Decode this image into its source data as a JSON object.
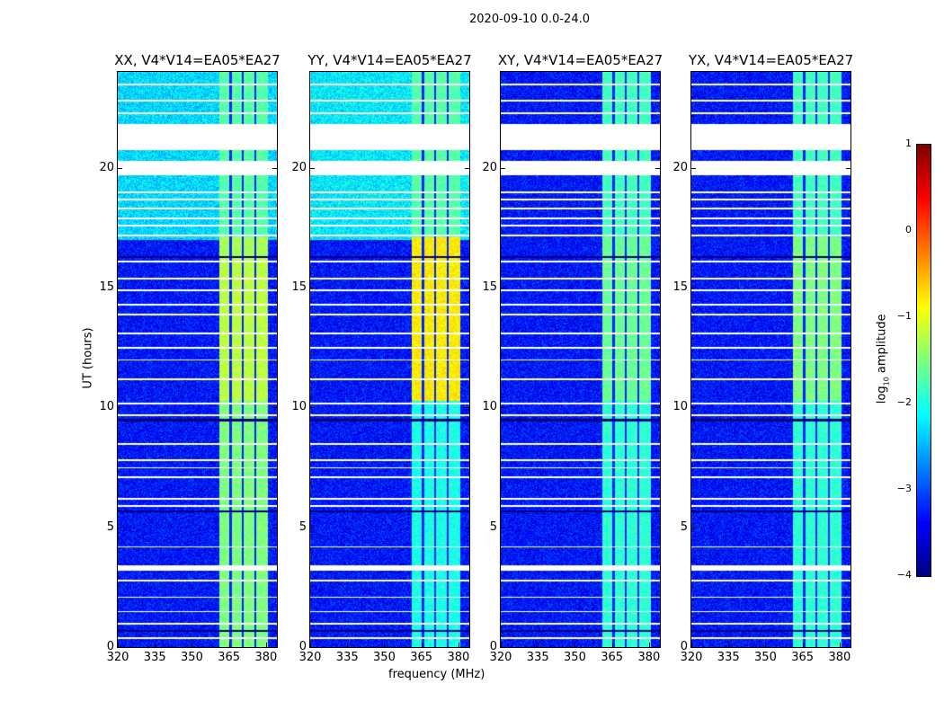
{
  "title": "2020-09-10 0.0-24.0",
  "chart_data": {
    "type": "heatmap",
    "title": "2020-09-10 0.0-24.0",
    "xlabel": "frequency (MHz)",
    "ylabel": "UT (hours)",
    "xlim": [
      320,
      384.4
    ],
    "ylim": [
      0,
      24
    ],
    "xticks": [
      "320",
      "335",
      "350",
      "365",
      "380"
    ],
    "xtick_values": [
      320,
      335,
      350,
      365,
      380
    ],
    "yticks": [
      "0",
      "5",
      "10",
      "15",
      "20"
    ],
    "ytick_values": [
      0,
      5,
      10,
      15,
      20
    ],
    "colorbar": {
      "label": "log10 amplitude",
      "label_main": "log",
      "label_sub": "10",
      "label_rest": " amplitude",
      "range": [
        -4,
        1
      ],
      "colormap": "jet",
      "ticks": [
        "1",
        "0",
        "−1",
        "−2",
        "−3",
        "−4"
      ],
      "tick_values": [
        1,
        0,
        -1,
        -2,
        -3,
        -4
      ]
    },
    "flagged_time_ranges": [
      [
        20.75,
        21.85
      ],
      [
        19.7,
        20.3
      ],
      [
        3.2,
        3.45
      ]
    ],
    "thin_flag_lines": [
      23.5,
      22.8,
      22.3,
      19.0,
      18.7,
      18.3,
      17.9,
      17.6,
      17.2,
      16.1,
      15.4,
      14.9,
      14.3,
      13.9,
      13.1,
      12.5,
      12.0,
      11.2,
      10.2,
      9.7,
      8.5,
      7.8,
      7.5,
      7.1,
      6.2,
      5.9,
      4.2,
      2.8,
      2.1,
      1.5,
      1.0,
      0.4
    ],
    "panels": [
      {
        "title": "XX, V4*V14=EA05*EA27",
        "background": [
          {
            "t": [
              17,
              24
            ],
            "level": -2.3
          },
          {
            "t": [
              0,
              17
            ],
            "level": -3.3
          }
        ],
        "band": {
          "f": [
            360.8,
            380.4
          ],
          "segments": [
            {
              "t": [
                16.3,
                17.1
              ],
              "level": -1.3
            },
            {
              "t": [
                10.3,
                16.3
              ],
              "level": -1.2
            },
            {
              "t": [
                17.1,
                24
              ],
              "level": -1.7
            },
            {
              "t": [
                0,
                10.3
              ],
              "level": -1.5
            }
          ]
        }
      },
      {
        "title": "YY, V4*V14=EA05*EA27",
        "background": [
          {
            "t": [
              17,
              24
            ],
            "level": -2.2
          },
          {
            "t": [
              0,
              17
            ],
            "level": -3.3
          }
        ],
        "band": {
          "f": [
            360.8,
            380.4
          ],
          "segments": [
            {
              "t": [
                10.3,
                17.1
              ],
              "level": -0.8
            },
            {
              "t": [
                17.1,
                24
              ],
              "level": -1.7
            },
            {
              "t": [
                0,
                10.3
              ],
              "level": -2.0
            }
          ]
        }
      },
      {
        "title": "XY, V4*V14=EA05*EA27",
        "background": [
          {
            "t": [
              0,
              24
            ],
            "level": -3.3
          }
        ],
        "band": {
          "f": [
            360.8,
            380.4
          ],
          "segments": [
            {
              "t": [
                10.3,
                17.1
              ],
              "level": -1.6
            },
            {
              "t": [
                17.1,
                24
              ],
              "level": -1.8
            },
            {
              "t": [
                0,
                10.3
              ],
              "level": -1.9
            }
          ]
        }
      },
      {
        "title": "YX, V4*V14=EA05*EA27",
        "background": [
          {
            "t": [
              0,
              24
            ],
            "level": -3.3
          }
        ],
        "band": {
          "f": [
            360.8,
            380.4
          ],
          "segments": [
            {
              "t": [
                10.3,
                17.1
              ],
              "level": -1.5
            },
            {
              "t": [
                17.1,
                24
              ],
              "level": -1.8
            },
            {
              "t": [
                0,
                10.3
              ],
              "level": -1.9
            }
          ]
        }
      }
    ],
    "channel_gaps_mhz": [
      365.5,
      370.5,
      375.5
    ]
  }
}
